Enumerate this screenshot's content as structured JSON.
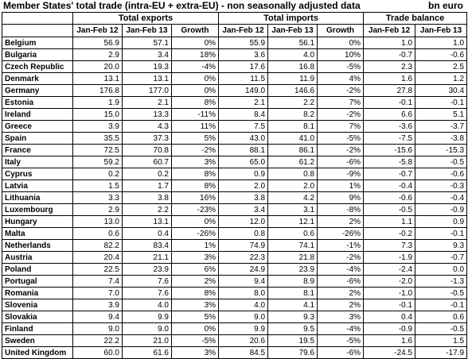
{
  "title": "Member States' total trade (intra-EU + extra-EU) - non seasonally adjusted data",
  "unit": "bn euro",
  "groups": {
    "exports": "Total exports",
    "imports": "Total imports",
    "balance": "Trade balance"
  },
  "subheaders": {
    "y12": "Jan-Feb 12",
    "y13": "Jan-Feb 13",
    "growth": "Growth"
  },
  "rows": [
    {
      "country": "Belgium",
      "ex12": "56.9",
      "ex13": "57.1",
      "exg": "0%",
      "im12": "55.9",
      "im13": "56.1",
      "img": "0%",
      "b12": "1.0",
      "b13": "1.0"
    },
    {
      "country": "Bulgaria",
      "ex12": "2.9",
      "ex13": "3.4",
      "exg": "18%",
      "im12": "3.6",
      "im13": "4.0",
      "img": "10%",
      "b12": "-0.7",
      "b13": "-0.6"
    },
    {
      "country": "Czech Republic",
      "ex12": "20.0",
      "ex13": "19.3",
      "exg": "-4%",
      "im12": "17.6",
      "im13": "16.8",
      "img": "-5%",
      "b12": "2.3",
      "b13": "2.5"
    },
    {
      "country": "Denmark",
      "ex12": "13.1",
      "ex13": "13.1",
      "exg": "0%",
      "im12": "11.5",
      "im13": "11.9",
      "img": "4%",
      "b12": "1.6",
      "b13": "1.2"
    },
    {
      "country": "Germany",
      "ex12": "176.8",
      "ex13": "177.0",
      "exg": "0%",
      "im12": "149.0",
      "im13": "146.6",
      "img": "-2%",
      "b12": "27.8",
      "b13": "30.4"
    },
    {
      "country": "Estonia",
      "ex12": "1.9",
      "ex13": "2.1",
      "exg": "8%",
      "im12": "2.1",
      "im13": "2.2",
      "img": "7%",
      "b12": "-0.1",
      "b13": "-0.1"
    },
    {
      "country": "Ireland",
      "ex12": "15.0",
      "ex13": "13.3",
      "exg": "-11%",
      "im12": "8.4",
      "im13": "8.2",
      "img": "-2%",
      "b12": "6.6",
      "b13": "5.1"
    },
    {
      "country": "Greece",
      "ex12": "3.9",
      "ex13": "4.3",
      "exg": "11%",
      "im12": "7.5",
      "im13": "8.1",
      "img": "7%",
      "b12": "-3.6",
      "b13": "-3.7"
    },
    {
      "country": "Spain",
      "ex12": "35.5",
      "ex13": "37.3",
      "exg": "5%",
      "im12": "43.0",
      "im13": "41.0",
      "img": "-5%",
      "b12": "-7.5",
      "b13": "-3.8"
    },
    {
      "country": "France",
      "ex12": "72.5",
      "ex13": "70.8",
      "exg": "-2%",
      "im12": "88.1",
      "im13": "86.1",
      "img": "-2%",
      "b12": "-15.6",
      "b13": "-15.3"
    },
    {
      "country": "Italy",
      "ex12": "59.2",
      "ex13": "60.7",
      "exg": "3%",
      "im12": "65.0",
      "im13": "61.2",
      "img": "-6%",
      "b12": "-5.8",
      "b13": "-0.5"
    },
    {
      "country": "Cyprus",
      "ex12": "0.2",
      "ex13": "0.2",
      "exg": "8%",
      "im12": "0.9",
      "im13": "0.8",
      "img": "-9%",
      "b12": "-0.7",
      "b13": "-0.6"
    },
    {
      "country": "Latvia",
      "ex12": "1.5",
      "ex13": "1.7",
      "exg": "8%",
      "im12": "2.0",
      "im13": "2.0",
      "img": "1%",
      "b12": "-0.4",
      "b13": "-0.3"
    },
    {
      "country": "Lithuania",
      "ex12": "3.3",
      "ex13": "3.8",
      "exg": "16%",
      "im12": "3.8",
      "im13": "4.2",
      "img": "9%",
      "b12": "-0.6",
      "b13": "-0.4"
    },
    {
      "country": "Luxembourg",
      "ex12": "2.9",
      "ex13": "2.2",
      "exg": "-23%",
      "im12": "3.4",
      "im13": "3.1",
      "img": "-8%",
      "b12": "-0.5",
      "b13": "-0.9"
    },
    {
      "country": "Hungary",
      "ex12": "13.0",
      "ex13": "13.1",
      "exg": "0%",
      "im12": "12.0",
      "im13": "12.1",
      "img": "2%",
      "b12": "1.1",
      "b13": "0.9"
    },
    {
      "country": "Malta",
      "ex12": "0.6",
      "ex13": "0.4",
      "exg": "-26%",
      "im12": "0.8",
      "im13": "0.6",
      "img": "-26%",
      "b12": "-0.2",
      "b13": "-0.1"
    },
    {
      "country": "Netherlands",
      "ex12": "82.2",
      "ex13": "83.4",
      "exg": "1%",
      "im12": "74.9",
      "im13": "74.1",
      "img": "-1%",
      "b12": "7.3",
      "b13": "9.3"
    },
    {
      "country": "Austria",
      "ex12": "20.4",
      "ex13": "21.1",
      "exg": "3%",
      "im12": "22.3",
      "im13": "21.8",
      "img": "-2%",
      "b12": "-1.9",
      "b13": "-0.7"
    },
    {
      "country": "Poland",
      "ex12": "22.5",
      "ex13": "23.9",
      "exg": "6%",
      "im12": "24.9",
      "im13": "23.9",
      "img": "-4%",
      "b12": "-2.4",
      "b13": "0.0"
    },
    {
      "country": "Portugal",
      "ex12": "7.4",
      "ex13": "7.6",
      "exg": "2%",
      "im12": "9.4",
      "im13": "8.9",
      "img": "-6%",
      "b12": "-2.0",
      "b13": "-1.3"
    },
    {
      "country": "Romania",
      "ex12": "7.0",
      "ex13": "7.6",
      "exg": "8%",
      "im12": "8.0",
      "im13": "8.1",
      "img": "2%",
      "b12": "-1.0",
      "b13": "-0.5"
    },
    {
      "country": "Slovenia",
      "ex12": "3.9",
      "ex13": "4.0",
      "exg": "3%",
      "im12": "4.0",
      "im13": "4.1",
      "img": "2%",
      "b12": "-0.1",
      "b13": "-0.1"
    },
    {
      "country": "Slovakia",
      "ex12": "9.4",
      "ex13": "9.9",
      "exg": "5%",
      "im12": "9.0",
      "im13": "9.3",
      "img": "3%",
      "b12": "0.4",
      "b13": "0.6"
    },
    {
      "country": "Finland",
      "ex12": "9.0",
      "ex13": "9.0",
      "exg": "0%",
      "im12": "9.9",
      "im13": "9.5",
      "img": "-4%",
      "b12": "-0.9",
      "b13": "-0.5"
    },
    {
      "country": "Sweden",
      "ex12": "22.2",
      "ex13": "21.0",
      "exg": "-5%",
      "im12": "20.6",
      "im13": "19.5",
      "img": "-5%",
      "b12": "1.6",
      "b13": "1.5"
    },
    {
      "country": "United Kingdom",
      "ex12": "60.0",
      "ex13": "61.6",
      "exg": "3%",
      "im12": "84.5",
      "im13": "79.6",
      "img": "-6%",
      "b12": "-24.5",
      "b13": "-17.9"
    }
  ]
}
